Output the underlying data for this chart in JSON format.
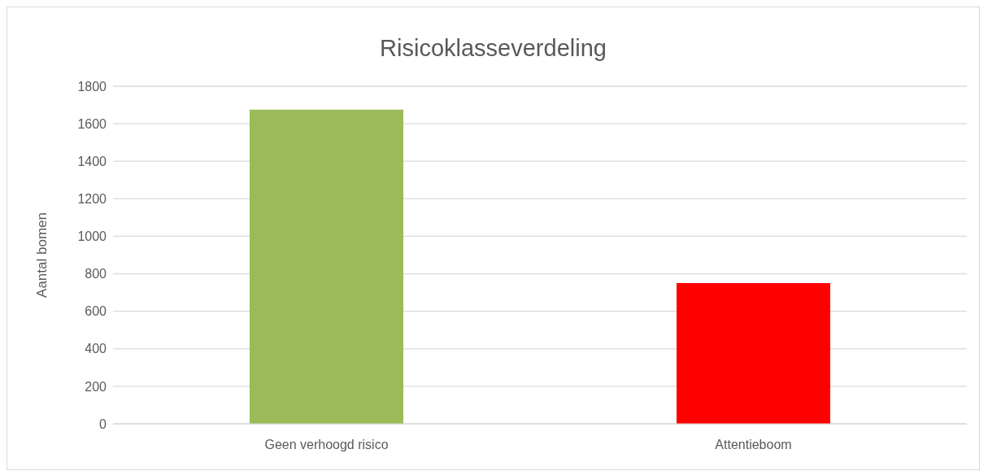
{
  "chart_data": {
    "type": "bar",
    "title": "Risicoklasseverdeling",
    "ylabel": "Aantal bomen",
    "categories": [
      "Geen verhoogd risico",
      "Attentieboom"
    ],
    "values": [
      1675,
      750
    ],
    "colors": [
      "#9bbb59",
      "#ff0000"
    ],
    "ylim": [
      0,
      1800
    ],
    "yticks": [
      0,
      200,
      400,
      600,
      800,
      1000,
      1200,
      1400,
      1600,
      1800
    ],
    "grid": "y"
  }
}
